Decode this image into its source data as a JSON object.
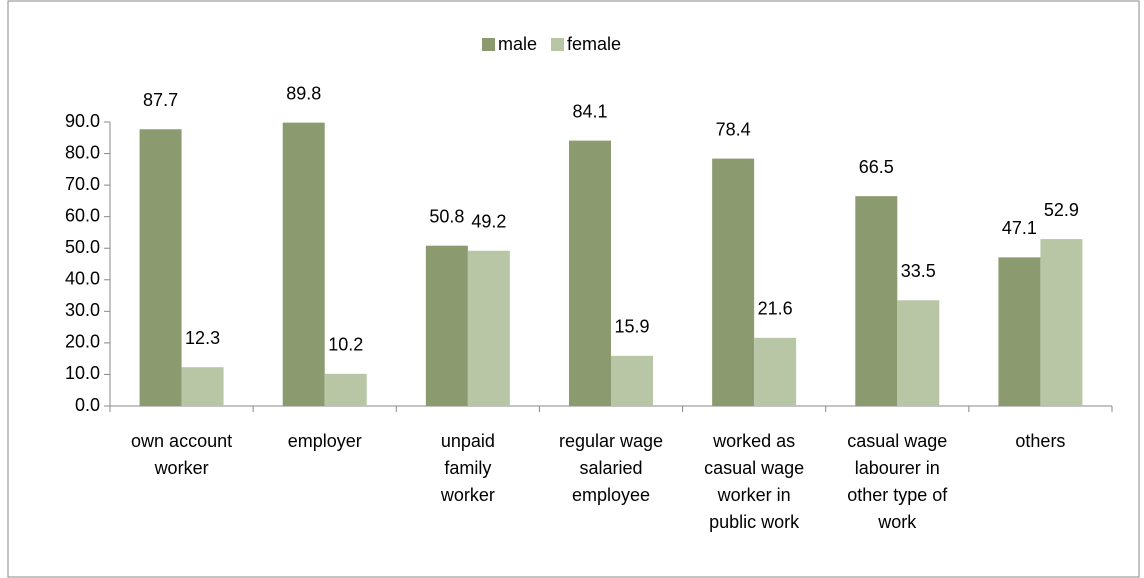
{
  "chart_data": {
    "type": "bar",
    "categories": [
      "own account\nworker",
      "employer",
      "unpaid\nfamily\nworker",
      "regular wage\nsalaried\nemployee",
      "worked as\ncasual wage\nworker in\npublic work",
      "casual wage\nlabourer in\nother type of\nwork",
      "others"
    ],
    "series": [
      {
        "name": "male",
        "color": "#8b9b6f",
        "values": [
          87.7,
          89.8,
          50.8,
          84.1,
          78.4,
          66.5,
          47.1
        ]
      },
      {
        "name": "female",
        "color": "#b9c6a6",
        "values": [
          12.3,
          10.2,
          49.2,
          15.9,
          21.6,
          33.5,
          52.9
        ]
      }
    ],
    "ylim": [
      0,
      90
    ],
    "yticks": [
      {
        "value": 0,
        "label": "0.0"
      },
      {
        "value": 10,
        "label": "10.0"
      },
      {
        "value": 20,
        "label": "20.0"
      },
      {
        "value": 30,
        "label": "30.0"
      },
      {
        "value": 40,
        "label": "40.0"
      },
      {
        "value": 50,
        "label": "50.0"
      },
      {
        "value": 60,
        "label": "60.0"
      },
      {
        "value": 70,
        "label": "70.0"
      },
      {
        "value": 80,
        "label": "80.0"
      },
      {
        "value": 90,
        "label": "90.0"
      }
    ],
    "legend": "top"
  }
}
